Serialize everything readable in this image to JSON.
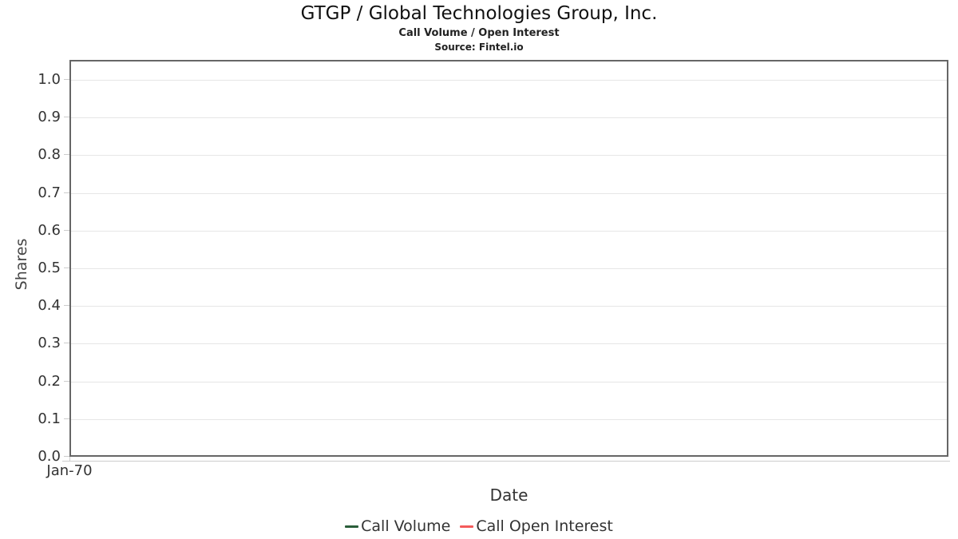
{
  "chart_data": {
    "type": "line",
    "title": "GTGP / Global Technologies Group, Inc.",
    "subtitle": "Call Volume / Open Interest",
    "source": "Source: Fintel.io",
    "xlabel": "Date",
    "ylabel": "Shares",
    "ylim": [
      0.0,
      1.0
    ],
    "y_tick_labels": [
      "0.0",
      "0.1",
      "0.2",
      "0.3",
      "0.4",
      "0.5",
      "0.6",
      "0.7",
      "0.8",
      "0.9",
      "1.0"
    ],
    "x_tick_labels": [
      "Jan-70"
    ],
    "x_tick_positions": [
      0
    ],
    "grid": true,
    "legend_position": "bottom",
    "series": [
      {
        "name": "Call Volume",
        "color": "#2a5e3a",
        "values": []
      },
      {
        "name": "Call Open Interest",
        "color": "#f45b5b",
        "values": []
      }
    ]
  },
  "colors": {
    "plot_border": "#666666",
    "gridline": "#e6e6e6",
    "tick": "#cccccc",
    "axis_line": "#cccccc",
    "call_volume": "#2a5e3a",
    "call_open_interest": "#f45b5b"
  }
}
